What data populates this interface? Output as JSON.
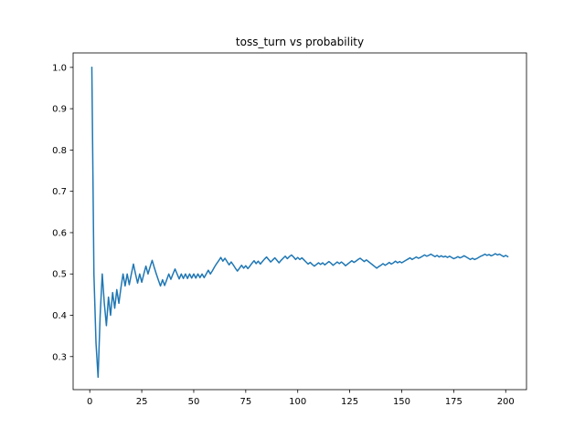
{
  "chart_data": {
    "type": "line",
    "title": "toss_turn vs probability",
    "xlabel": "",
    "ylabel": "",
    "xlim": [
      -8,
      210
    ],
    "ylim": [
      0.22,
      1.035
    ],
    "xticks": [
      0,
      25,
      50,
      75,
      100,
      125,
      150,
      175,
      200
    ],
    "yticks": [
      0.3,
      0.4,
      0.5,
      0.6,
      0.7,
      0.8,
      0.9,
      1.0
    ],
    "grid": false,
    "line_color": "#1f77b4",
    "series": [
      {
        "x": [
          1,
          2,
          3,
          4,
          5,
          6,
          7,
          8,
          9,
          10,
          11,
          12,
          13,
          14,
          15,
          16,
          17,
          18,
          19,
          20,
          21,
          22,
          23,
          24,
          25,
          26,
          27,
          28,
          29,
          30,
          31,
          32,
          33,
          34,
          35,
          36,
          37,
          38,
          39,
          40,
          41,
          42,
          43,
          44,
          45,
          46,
          47,
          48,
          49,
          50,
          51,
          52,
          53,
          54,
          55,
          56,
          57,
          58,
          59,
          60,
          61,
          62,
          63,
          64,
          65,
          66,
          67,
          68,
          69,
          70,
          71,
          72,
          73,
          74,
          75,
          76,
          77,
          78,
          79,
          80,
          81,
          82,
          83,
          84,
          85,
          86,
          87,
          88,
          89,
          90,
          91,
          92,
          93,
          94,
          95,
          96,
          97,
          98,
          99,
          100,
          101,
          102,
          103,
          104,
          105,
          106,
          107,
          108,
          109,
          110,
          111,
          112,
          113,
          114,
          115,
          116,
          117,
          118,
          119,
          120,
          121,
          122,
          123,
          124,
          125,
          126,
          127,
          128,
          129,
          130,
          131,
          132,
          133,
          134,
          135,
          136,
          137,
          138,
          139,
          140,
          141,
          142,
          143,
          144,
          145,
          146,
          147,
          148,
          149,
          150,
          151,
          152,
          153,
          154,
          155,
          156,
          157,
          158,
          159,
          160,
          161,
          162,
          163,
          164,
          165,
          166,
          167,
          168,
          169,
          170,
          171,
          172,
          173,
          174,
          175,
          176,
          177,
          178,
          179,
          180,
          181,
          182,
          183,
          184,
          185,
          186,
          187,
          188,
          189,
          190,
          191,
          192,
          193,
          194,
          195,
          196,
          197,
          198,
          199,
          200,
          201
        ],
        "values": [
          1.0,
          0.5,
          0.333,
          0.25,
          0.4,
          0.5,
          0.429,
          0.375,
          0.444,
          0.4,
          0.455,
          0.417,
          0.462,
          0.429,
          0.467,
          0.5,
          0.471,
          0.5,
          0.474,
          0.5,
          0.524,
          0.5,
          0.478,
          0.5,
          0.48,
          0.5,
          0.519,
          0.5,
          0.517,
          0.533,
          0.516,
          0.5,
          0.485,
          0.471,
          0.486,
          0.472,
          0.486,
          0.5,
          0.487,
          0.5,
          0.512,
          0.5,
          0.488,
          0.5,
          0.489,
          0.5,
          0.489,
          0.5,
          0.49,
          0.5,
          0.49,
          0.5,
          0.491,
          0.5,
          0.491,
          0.5,
          0.509,
          0.5,
          0.508,
          0.517,
          0.525,
          0.532,
          0.54,
          0.531,
          0.538,
          0.53,
          0.522,
          0.529,
          0.522,
          0.514,
          0.507,
          0.514,
          0.521,
          0.514,
          0.52,
          0.513,
          0.519,
          0.526,
          0.532,
          0.525,
          0.531,
          0.524,
          0.53,
          0.536,
          0.541,
          0.535,
          0.529,
          0.534,
          0.539,
          0.533,
          0.527,
          0.533,
          0.538,
          0.543,
          0.537,
          0.542,
          0.546,
          0.541,
          0.535,
          0.54,
          0.535,
          0.539,
          0.534,
          0.529,
          0.524,
          0.528,
          0.523,
          0.519,
          0.523,
          0.527,
          0.523,
          0.527,
          0.522,
          0.526,
          0.53,
          0.526,
          0.521,
          0.525,
          0.529,
          0.525,
          0.529,
          0.525,
          0.52,
          0.524,
          0.528,
          0.532,
          0.528,
          0.531,
          0.535,
          0.538,
          0.534,
          0.53,
          0.534,
          0.53,
          0.526,
          0.522,
          0.518,
          0.514,
          0.518,
          0.521,
          0.525,
          0.521,
          0.524,
          0.528,
          0.524,
          0.527,
          0.531,
          0.527,
          0.53,
          0.527,
          0.53,
          0.533,
          0.536,
          0.539,
          0.535,
          0.538,
          0.541,
          0.538,
          0.54,
          0.543,
          0.546,
          0.543,
          0.545,
          0.548,
          0.545,
          0.542,
          0.545,
          0.541,
          0.544,
          0.541,
          0.543,
          0.54,
          0.543,
          0.54,
          0.537,
          0.539,
          0.542,
          0.539,
          0.541,
          0.544,
          0.541,
          0.538,
          0.535,
          0.538,
          0.535,
          0.537,
          0.54,
          0.543,
          0.545,
          0.548,
          0.545,
          0.547,
          0.544,
          0.546,
          0.549,
          0.546,
          0.548,
          0.545,
          0.542,
          0.545,
          0.542
        ]
      }
    ]
  }
}
